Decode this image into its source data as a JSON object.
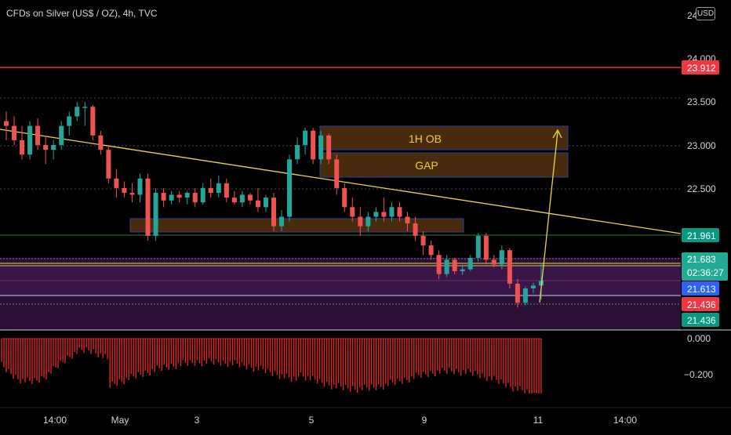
{
  "chart": {
    "symbol_label": "CFDs on Silver (US$ / OZ), 4h, TVC",
    "currency_button": "USD",
    "y_axis_partial_label": "24"
  },
  "price_axis": {
    "ticks": [
      "24.000",
      "23.500",
      "23.000",
      "22.500"
    ],
    "badges": [
      {
        "value": "23.912",
        "color": "#f23645"
      },
      {
        "value": "21.961",
        "color": "#089981"
      },
      {
        "value": "21.683",
        "sub": "02:36:27",
        "color": "#22ab94"
      },
      {
        "value": "21.613",
        "color": "#2962ff"
      },
      {
        "value": "21.436",
        "color": "#f23645"
      },
      {
        "value": "21.436",
        "color": "#089981"
      }
    ]
  },
  "indicator_axis": {
    "ticks": [
      "0.000",
      "−0.200"
    ]
  },
  "time_axis": {
    "ticks": [
      "14:00",
      "May",
      "3",
      "5",
      "9",
      "11",
      "14:00"
    ]
  },
  "zones": {
    "ob_label": "1H OB",
    "gap_label": "GAP"
  },
  "colors": {
    "bull": "#26a69a",
    "bear": "#ef5350",
    "trendline": "#e6d84a",
    "resistance": "#e03333",
    "zone_fill": "#4a2a0c",
    "zone_border": "#2f3fa0",
    "purple_zone": "#3a1648",
    "histogram": "#e02424"
  },
  "chart_data": {
    "type": "candlestick",
    "timeframe": "4h",
    "y_range": [
      21.3,
      24.2
    ],
    "candles": [
      [
        23.35,
        23.45,
        23.15,
        23.3
      ],
      [
        23.3,
        23.4,
        23.1,
        23.15
      ],
      [
        23.15,
        23.3,
        22.95,
        23.0
      ],
      [
        23.0,
        23.35,
        22.95,
        23.3
      ],
      [
        23.3,
        23.38,
        23.05,
        23.1
      ],
      [
        23.1,
        23.2,
        22.9,
        23.05
      ],
      [
        23.05,
        23.15,
        22.95,
        23.1
      ],
      [
        23.1,
        23.35,
        23.05,
        23.3
      ],
      [
        23.3,
        23.45,
        23.2,
        23.4
      ],
      [
        23.4,
        23.55,
        23.35,
        23.5
      ],
      [
        23.5,
        23.55,
        23.3,
        23.5
      ],
      [
        23.5,
        23.52,
        23.15,
        23.2
      ],
      [
        23.2,
        23.25,
        23.0,
        23.05
      ],
      [
        23.05,
        23.1,
        22.7,
        22.75
      ],
      [
        22.75,
        22.85,
        22.55,
        22.65
      ],
      [
        22.65,
        22.72,
        22.55,
        22.6
      ],
      [
        22.6,
        22.7,
        22.5,
        22.58
      ],
      [
        22.58,
        22.8,
        22.5,
        22.75
      ],
      [
        22.75,
        22.8,
        22.1,
        22.15
      ],
      [
        22.15,
        22.65,
        22.1,
        22.6
      ],
      [
        22.6,
        22.65,
        22.45,
        22.52
      ],
      [
        22.52,
        22.62,
        22.48,
        22.58
      ],
      [
        22.58,
        22.62,
        22.5,
        22.55
      ],
      [
        22.55,
        22.62,
        22.48,
        22.6
      ],
      [
        22.6,
        22.65,
        22.45,
        22.5
      ],
      [
        22.5,
        22.7,
        22.48,
        22.65
      ],
      [
        22.65,
        22.75,
        22.55,
        22.6
      ],
      [
        22.6,
        22.78,
        22.55,
        22.7
      ],
      [
        22.7,
        22.75,
        22.5,
        22.55
      ],
      [
        22.55,
        22.62,
        22.48,
        22.5
      ],
      [
        22.5,
        22.62,
        22.45,
        22.58
      ],
      [
        22.58,
        22.6,
        22.48,
        22.52
      ],
      [
        22.52,
        22.65,
        22.4,
        22.45
      ],
      [
        22.45,
        22.58,
        22.4,
        22.55
      ],
      [
        22.55,
        22.6,
        22.2,
        22.25
      ],
      [
        22.25,
        22.42,
        22.2,
        22.35
      ],
      [
        22.35,
        23.0,
        22.3,
        22.95
      ],
      [
        22.95,
        23.18,
        22.9,
        23.1
      ],
      [
        23.1,
        23.28,
        23.0,
        23.25
      ],
      [
        23.25,
        23.28,
        22.9,
        22.95
      ],
      [
        22.95,
        23.25,
        22.9,
        23.2
      ],
      [
        23.2,
        23.22,
        22.9,
        22.95
      ],
      [
        22.95,
        23.0,
        22.58,
        22.65
      ],
      [
        22.65,
        22.7,
        22.4,
        22.45
      ],
      [
        22.45,
        22.55,
        22.3,
        22.35
      ],
      [
        22.35,
        22.45,
        22.15,
        22.25
      ],
      [
        22.25,
        22.4,
        22.2,
        22.35
      ],
      [
        22.35,
        22.45,
        22.3,
        22.4
      ],
      [
        22.4,
        22.55,
        22.3,
        22.35
      ],
      [
        22.35,
        22.5,
        22.3,
        22.45
      ],
      [
        22.45,
        22.5,
        22.3,
        22.35
      ],
      [
        22.35,
        22.4,
        22.2,
        22.28
      ],
      [
        22.28,
        22.35,
        22.1,
        22.15
      ],
      [
        22.15,
        22.2,
        21.95,
        22.05
      ],
      [
        22.05,
        22.1,
        21.9,
        21.95
      ],
      [
        21.95,
        22.0,
        21.7,
        21.75
      ],
      [
        21.75,
        21.95,
        21.72,
        21.9
      ],
      [
        21.9,
        21.92,
        21.75,
        21.78
      ],
      [
        21.78,
        21.85,
        21.74,
        21.8
      ],
      [
        21.8,
        21.95,
        21.78,
        21.92
      ],
      [
        21.92,
        22.18,
        21.88,
        22.15
      ],
      [
        22.15,
        22.18,
        21.85,
        21.9
      ],
      [
        21.9,
        21.95,
        21.82,
        21.85
      ],
      [
        21.85,
        22.05,
        21.8,
        22.0
      ],
      [
        22.0,
        22.02,
        21.6,
        21.65
      ],
      [
        21.65,
        21.7,
        21.4,
        21.45
      ],
      [
        21.45,
        21.62,
        21.42,
        21.6
      ],
      [
        21.6,
        21.66,
        21.55,
        21.63
      ],
      [
        21.63,
        21.86,
        21.48,
        21.68
      ]
    ],
    "horizontal_levels": [
      23.912,
      21.961,
      21.683,
      21.613,
      21.436
    ],
    "zones": [
      {
        "label": "1H OB",
        "from": 22.92,
        "to": 23.15
      },
      {
        "label": "GAP",
        "from": 22.63,
        "to": 22.92
      },
      {
        "label": "",
        "from": 22.06,
        "to": 22.16
      },
      {
        "label": "",
        "from": 21.38,
        "to": 21.72
      }
    ],
    "indicator": {
      "ticks": [
        0.0,
        -0.2
      ]
    }
  }
}
